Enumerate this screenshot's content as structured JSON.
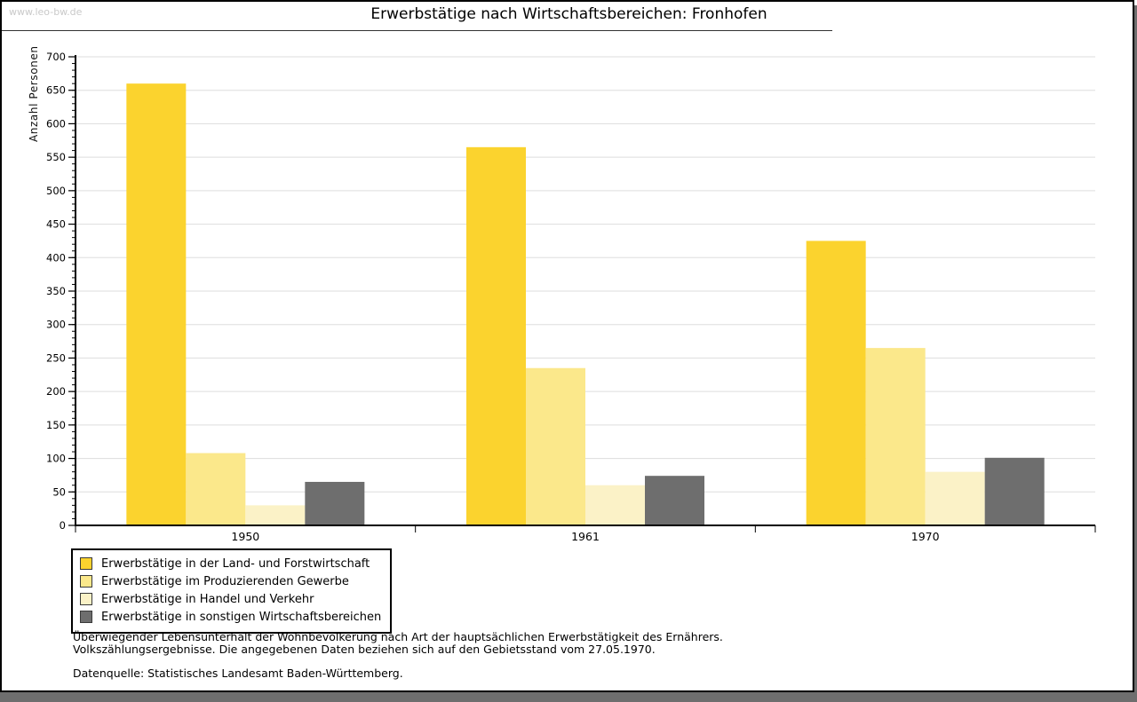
{
  "page": {
    "watermark": "www.leo-bw.de",
    "title": "Erwerbstätige nach Wirtschaftsbereichen: Fronhofen"
  },
  "chart_data": {
    "type": "bar",
    "title": "Erwerbstätige nach Wirtschaftsbereichen: Fronhofen",
    "ylabel": "Anzahl Personen",
    "xlabel": "",
    "categories": [
      "1950",
      "1961",
      "1970"
    ],
    "series": [
      {
        "name": "Erwerbstätige in der Land- und Forstwirtschaft",
        "color": "#FBD32E",
        "values": [
          660,
          565,
          425
        ]
      },
      {
        "name": "Erwerbstätige im Produzierenden Gewerbe",
        "color": "#FBE88B",
        "values": [
          108,
          235,
          265
        ]
      },
      {
        "name": "Erwerbstätige in Handel und Verkehr",
        "color": "#FBF2C7",
        "values": [
          30,
          60,
          80
        ]
      },
      {
        "name": "Erwerbstätige in sonstigen Wirtschaftsbereichen",
        "color": "#6E6E6E",
        "values": [
          65,
          74,
          101
        ]
      }
    ],
    "ylim": [
      0,
      700
    ],
    "ytick_step": 50,
    "minor_tick_step": 10,
    "grid": true,
    "legend_position": "bottom-left"
  },
  "footnotes": {
    "line1": "Überwiegender Lebensunterhalt der Wohnbevölkerung nach Art der hauptsächlichen Erwerbstätigkeit des Ernährers.",
    "line2": "Volkszählungsergebnisse. Die angegebenen Daten beziehen sich auf den Gebietsstand vom 27.05.1970.",
    "source": "Datenquelle: Statistisches Landesamt Baden-Württemberg."
  },
  "colors": {
    "gridline": "#DDDDDD",
    "axis": "#000000",
    "tick": "#000000",
    "shadow": "#6E6E6E",
    "watermark": "#C9C9C9",
    "header_rule": "#333333",
    "legend_border": "#000000",
    "swatch_border": "#3A3A3A"
  }
}
